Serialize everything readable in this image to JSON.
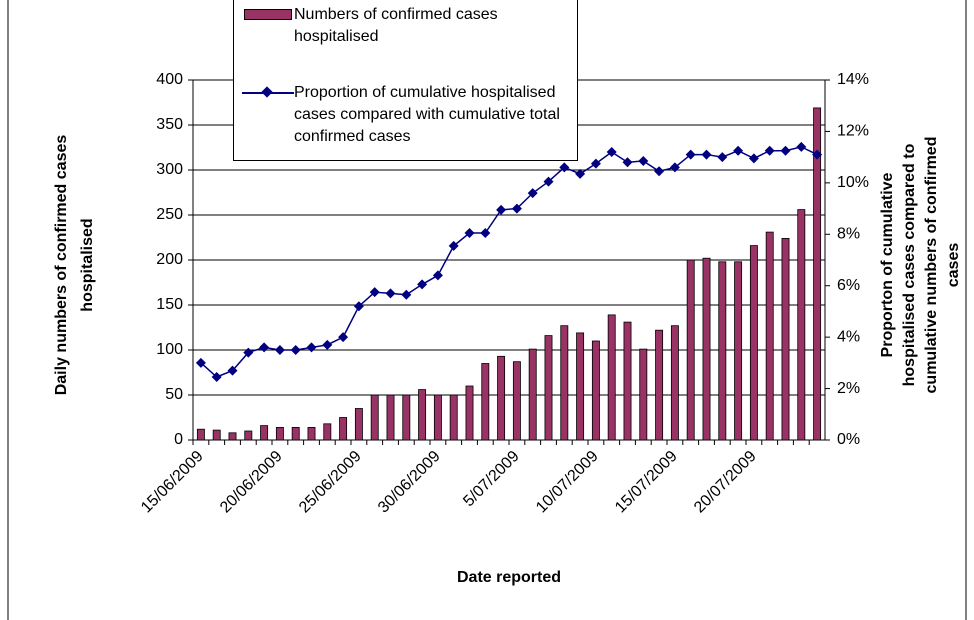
{
  "chart_data": {
    "type": "bar-line",
    "categories": [
      "15/06/2009",
      null,
      null,
      null,
      null,
      "20/06/2009",
      null,
      null,
      null,
      null,
      "25/06/2009",
      null,
      null,
      null,
      null,
      "30/06/2009",
      null,
      null,
      null,
      null,
      "5/07/2009",
      null,
      null,
      null,
      null,
      "10/07/2009",
      null,
      null,
      null,
      null,
      "15/07/2009",
      null,
      null,
      null,
      null,
      "20/07/2009",
      null,
      null,
      null,
      null
    ],
    "series": [
      {
        "name": "Numbers of confirmed cases hospitalised",
        "color": "#993366",
        "type": "bar",
        "values": [
          12,
          11,
          8,
          10,
          16,
          14,
          14,
          14,
          18,
          25,
          35,
          50,
          50,
          50,
          56,
          50,
          50,
          60,
          85,
          93,
          87,
          101,
          116,
          127,
          119,
          110,
          139,
          131,
          101,
          122,
          127,
          200,
          202,
          198,
          198,
          216,
          231,
          224,
          256,
          369
        ]
      },
      {
        "name": "Proportion of cumulative hospitalised cases compared with cumulative total confirmed cases",
        "color": "#000080",
        "type": "line",
        "axis": "y2",
        "values": [
          3.0,
          2.45,
          2.7,
          3.4,
          3.6,
          3.5,
          3.5,
          3.6,
          3.7,
          4.0,
          5.2,
          5.75,
          5.7,
          5.65,
          6.05,
          6.4,
          7.55,
          8.05,
          8.05,
          8.95,
          9.0,
          9.6,
          10.05,
          10.6,
          10.35,
          10.75,
          11.2,
          10.8,
          10.85,
          10.45,
          10.6,
          11.1,
          11.1,
          11.0,
          11.25,
          10.95,
          11.25,
          11.25,
          11.4,
          11.1
        ]
      }
    ],
    "x_label": "Date reported",
    "y_label": [
      "Daily numbers of confirmed cases",
      "hospitalised"
    ],
    "y2_label": [
      "Proporton of cumulative",
      "hospitalised cases compared to",
      "cumulative numbers of confirmed",
      "cases"
    ],
    "ylim": [
      0,
      400
    ],
    "yticks": [
      0,
      50,
      100,
      150,
      200,
      250,
      300,
      350,
      400
    ],
    "y2lim": [
      0,
      14
    ],
    "y2ticks": [
      {
        "value": 0,
        "label": "0%"
      },
      {
        "value": 2,
        "label": "2%"
      },
      {
        "value": 4,
        "label": "4%"
      },
      {
        "value": 6,
        "label": "6%"
      },
      {
        "value": 8,
        "label": "8%"
      },
      {
        "value": 10,
        "label": "10%"
      },
      {
        "value": 12,
        "label": "12%"
      },
      {
        "value": 14,
        "label": "14%"
      }
    ],
    "grid": true
  }
}
